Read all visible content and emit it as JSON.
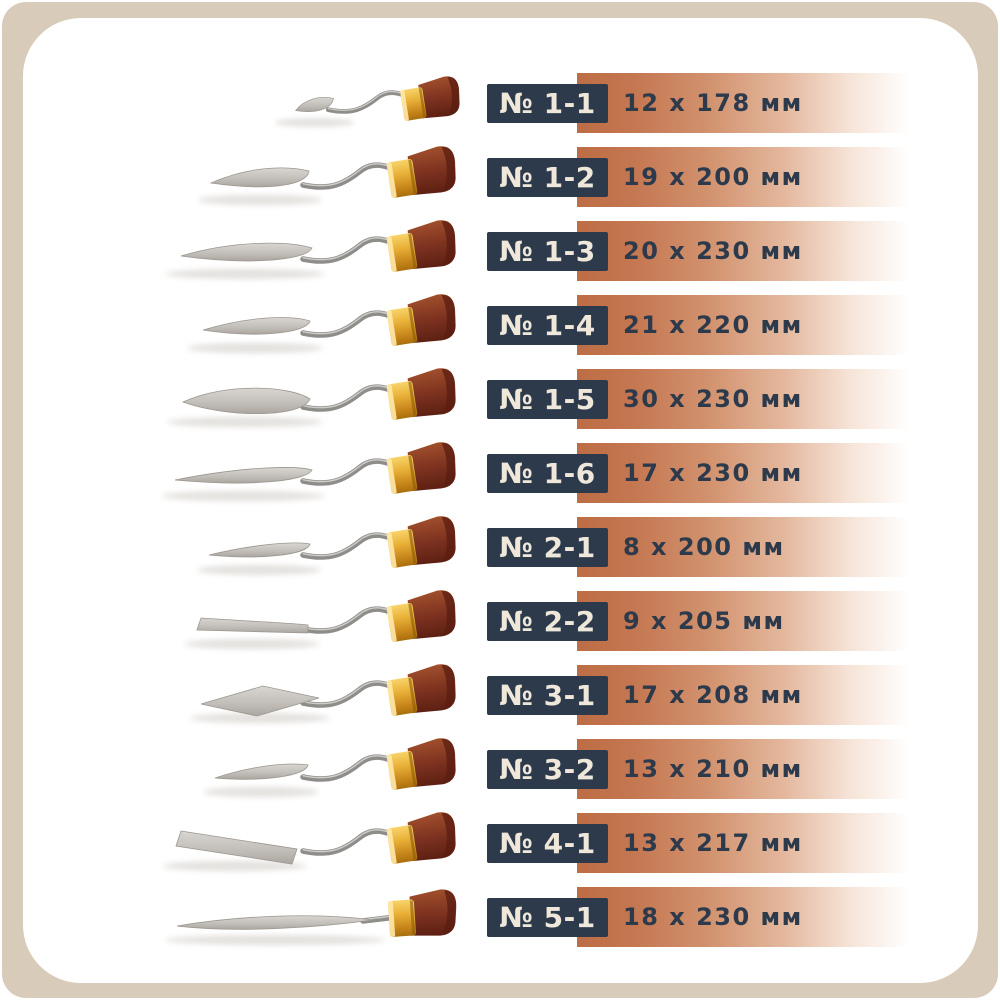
{
  "colors": {
    "background_beige": "#d8cbb9",
    "card_white": "#ffffff",
    "badge_navy": "#2d3a4b",
    "badge_text_cream": "#efe8da",
    "copper_strip": "#bd6d45",
    "size_text_navy": "#2d3a4b",
    "handle_wood": "#7e3320",
    "ferrule_brass": "#eab33b",
    "blade_steel": "#c3bfba"
  },
  "units": "мм",
  "rows": [
    {
      "number": "№ 1-1",
      "size": "12 x 178 мм",
      "knife": "small-drop-blade"
    },
    {
      "number": "№ 1-2",
      "size": "19 x 200 мм",
      "knife": "trowel-small-blade"
    },
    {
      "number": "№ 1-3",
      "size": "20 x 230 мм",
      "knife": "trowel-long-blade"
    },
    {
      "number": "№ 1-4",
      "size": "21 x 220 мм",
      "knife": "trowel-medium-blade"
    },
    {
      "number": "№ 1-5",
      "size": "30 x 230 мм",
      "knife": "drop-wide-blade"
    },
    {
      "number": "№ 1-6",
      "size": "17 x 230 мм",
      "knife": "slender-long-blade"
    },
    {
      "number": "№ 2-1",
      "size": "8 x 200 мм",
      "knife": "slender-small-blade"
    },
    {
      "number": "№ 2-2",
      "size": "9 x 205 мм",
      "knife": "spatula-flat-blade"
    },
    {
      "number": "№ 3-1",
      "size": "17 x 208 мм",
      "knife": "diamond-blade"
    },
    {
      "number": "№ 3-2",
      "size": "13 x 210 мм",
      "knife": "slender-curved-blade"
    },
    {
      "number": "№ 4-1",
      "size": "13 x 217 мм",
      "knife": "chisel-rect-blade"
    },
    {
      "number": "№ 5-1",
      "size": "18 x 230 мм",
      "knife": "palette-long-blade"
    }
  ]
}
